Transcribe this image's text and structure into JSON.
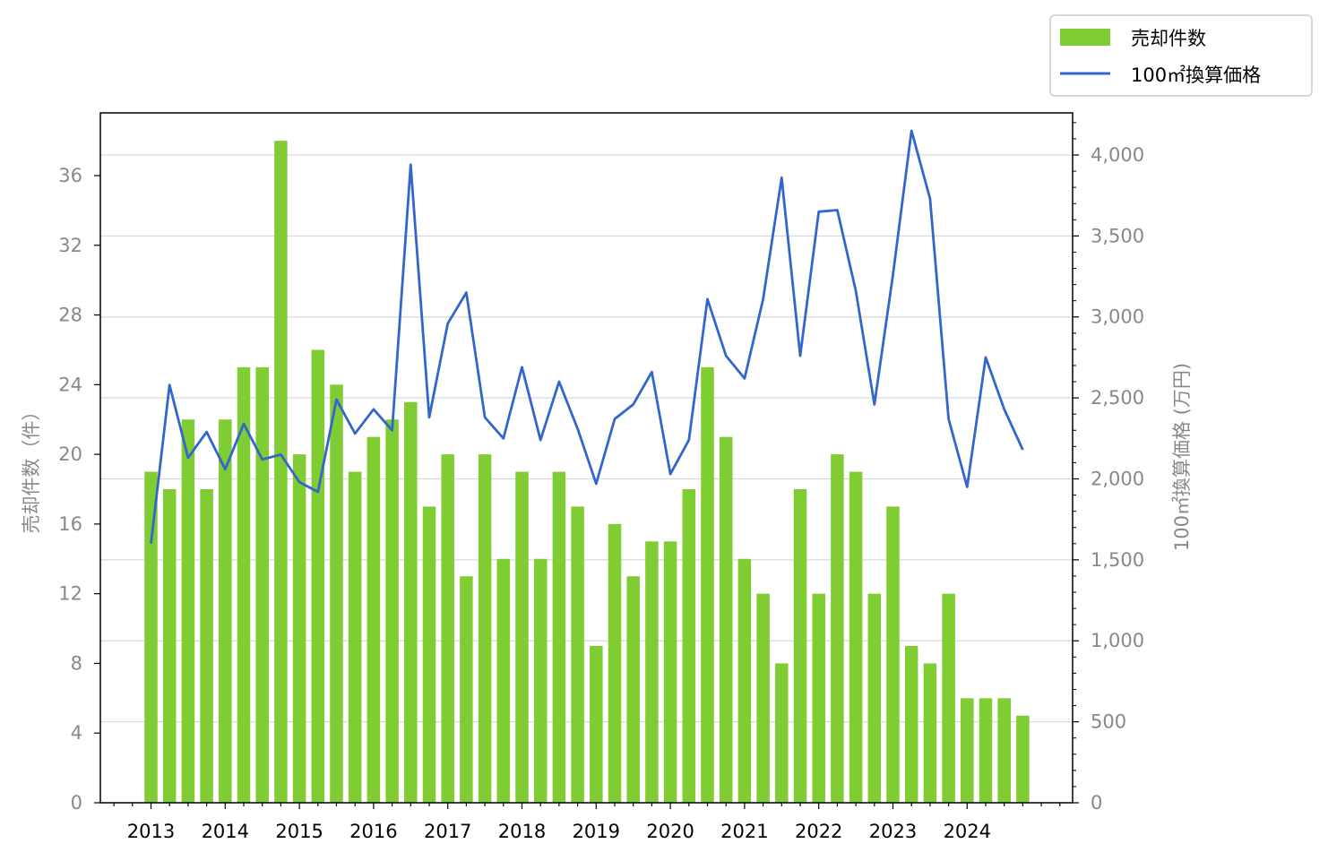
{
  "chart_data": {
    "type": "bar+line",
    "x": [
      "2013Q1",
      "2013Q2",
      "2013Q3",
      "2013Q4",
      "2014Q1",
      "2014Q2",
      "2014Q3",
      "2014Q4",
      "2015Q1",
      "2015Q2",
      "2015Q3",
      "2015Q4",
      "2016Q1",
      "2016Q2",
      "2016Q3",
      "2016Q4",
      "2017Q1",
      "2017Q2",
      "2017Q3",
      "2017Q4",
      "2018Q1",
      "2018Q2",
      "2018Q3",
      "2018Q4",
      "2019Q1",
      "2019Q2",
      "2019Q3",
      "2019Q4",
      "2020Q1",
      "2020Q2",
      "2020Q3",
      "2020Q4",
      "2021Q1",
      "2021Q2",
      "2021Q3",
      "2021Q4",
      "2022Q1",
      "2022Q2",
      "2022Q3",
      "2022Q4",
      "2023Q1",
      "2023Q2",
      "2023Q3",
      "2023Q4",
      "2024Q1",
      "2024Q2",
      "2024Q3",
      "2024Q4"
    ],
    "xtick_labels": [
      "2013",
      "2014",
      "2015",
      "2016",
      "2017",
      "2018",
      "2019",
      "2020",
      "2021",
      "2022",
      "2023",
      "2024"
    ],
    "series": [
      {
        "name": "売却件数",
        "type": "bar",
        "axis": "left",
        "color": "#7fcc33",
        "values": [
          19,
          18,
          22,
          18,
          22,
          25,
          25,
          38,
          20,
          26,
          24,
          19,
          21,
          22,
          23,
          17,
          20,
          13,
          20,
          14,
          19,
          14,
          19,
          17,
          9,
          16,
          13,
          15,
          15,
          18,
          25,
          21,
          14,
          12,
          8,
          18,
          12,
          20,
          19,
          12,
          17,
          9,
          8,
          12,
          6,
          6,
          6,
          5
        ]
      },
      {
        "name": "100㎡換算価格",
        "type": "line",
        "axis": "right",
        "color": "#3366cc",
        "values": [
          1600,
          2580,
          2130,
          2290,
          2060,
          2340,
          2120,
          2150,
          1980,
          1920,
          2490,
          2280,
          2430,
          2300,
          3940,
          2380,
          2960,
          3150,
          2380,
          2250,
          2690,
          2240,
          2600,
          2310,
          1970,
          2370,
          2460,
          2660,
          2030,
          2240,
          3110,
          2760,
          2620,
          3110,
          3860,
          2760,
          3650,
          3660,
          3160,
          2460,
          3260,
          4150,
          3730,
          2370,
          1950,
          2750,
          2430,
          2180
        ]
      }
    ],
    "ylabel_left": "売却件数（件）",
    "ylabel_right": "100㎡換算価格 (万円)",
    "ylim_left": [
      0,
      39.6
    ],
    "ylim_right": [
      0,
      4260
    ],
    "yticks_left": [
      0,
      4,
      8,
      12,
      16,
      20,
      24,
      28,
      32,
      36
    ],
    "yticks_right": [
      0,
      500,
      1000,
      1500,
      2000,
      2500,
      3000,
      3500,
      4000
    ],
    "yticks_right_labels": [
      "0",
      "500",
      "1,000",
      "1,500",
      "2,000",
      "2,500",
      "3,000",
      "3,500",
      "4,000"
    ],
    "grid": "horizontal, right axis",
    "legend_position": "top-right, outside"
  }
}
